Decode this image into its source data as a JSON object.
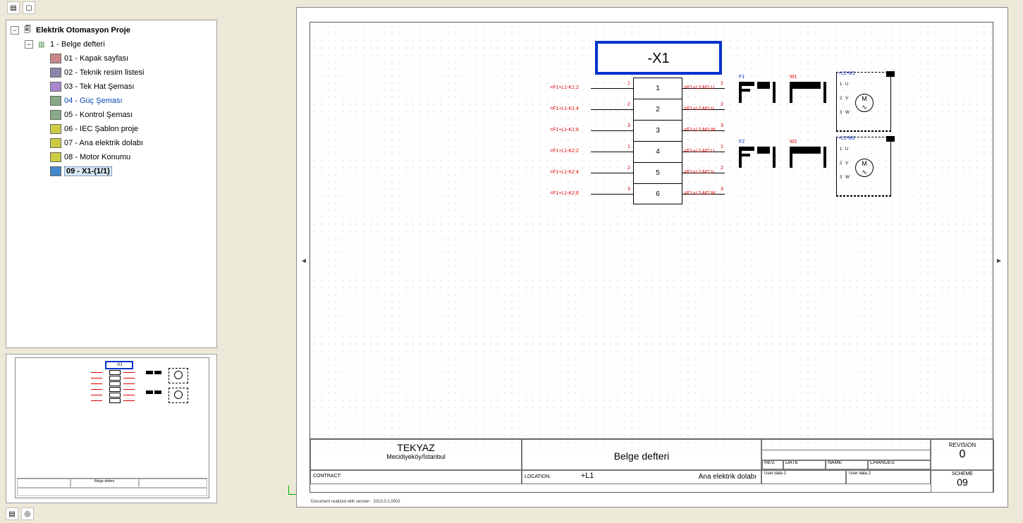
{
  "toolbar": {
    "btn1": "▤",
    "btn2": "▢"
  },
  "tree": {
    "root": {
      "expander": "−",
      "label": "Elektrik Otomasyon Proje"
    },
    "book": {
      "expander": "−",
      "label": "1 - Belge defteri"
    },
    "pages": [
      {
        "label": "01 - Kapak sayfası",
        "style": ""
      },
      {
        "label": "02 - Teknik resim listesi",
        "style": ""
      },
      {
        "label": "03 - Tek Hat Şeması",
        "style": ""
      },
      {
        "label": "04 - Güç Şeması",
        "style": "blue"
      },
      {
        "label": "05 - Kontrol Şeması",
        "style": ""
      },
      {
        "label": "06 - IEC Şablon proje",
        "style": ""
      },
      {
        "label": "07 - Ana elektrik dolabı",
        "style": ""
      },
      {
        "label": "08 - Motor Konumu",
        "style": ""
      },
      {
        "label": "09 - X1-(1/1)",
        "style": "selected"
      }
    ]
  },
  "preview": {
    "x1": "-X1",
    "title": "Belge defteri"
  },
  "diagram": {
    "x1_label": "-X1",
    "terminals": [
      "1",
      "2",
      "3",
      "4",
      "5",
      "6"
    ],
    "left_refs": [
      "=F1+L1-K1:2",
      "=F1+L1-K1:4",
      "=F1+L1-K1:6",
      "=F1+L1-K2:2",
      "=F1+L1-K2:4",
      "=F1+L1-K2:6"
    ],
    "right_refs": [
      "=F1+L2-M1:U",
      "=F1+L2-M1:V",
      "=F1+L2-M1:W",
      "=F1+L2-M2:U",
      "=F1+L2-M2:V",
      "=F1+L2-M2:W"
    ],
    "left_nums": [
      "1",
      "2",
      "3",
      "1",
      "2",
      "3"
    ],
    "right_nums": [
      "1",
      "2",
      "3",
      "1",
      "2",
      "3"
    ],
    "comp_labels": {
      "f1": "F1",
      "w1": "W1",
      "f2": "F2",
      "w2": "W2"
    },
    "motor_labels": {
      "m1": "+L2-M1",
      "m2": "+L2-M2",
      "m": "M",
      "tilde": "∿"
    },
    "motor_terms": [
      "U",
      "V",
      "W",
      "1",
      "2",
      "3"
    ]
  },
  "titleblock": {
    "company": "TEKYAZ",
    "company_sub": "Mecidiyeköy/İstanbul",
    "title": "Belge defteri",
    "contract_label": "CONTRACT:",
    "location_label": "LOCATION:",
    "location_value": "+L1",
    "location_desc": "Ana elektrik dolabı",
    "rev_label": "REV.",
    "date_label": "DATE",
    "name_label": "NAME",
    "changes_label": "CHANGES",
    "revision_label": "REVISION",
    "revision_value": "0",
    "scheme_label": "SCHEME",
    "scheme_value": "09",
    "user1": "User data 1",
    "user2": "User data 2",
    "footer_note": "Document realized with version : 2013.0.1.0002"
  }
}
